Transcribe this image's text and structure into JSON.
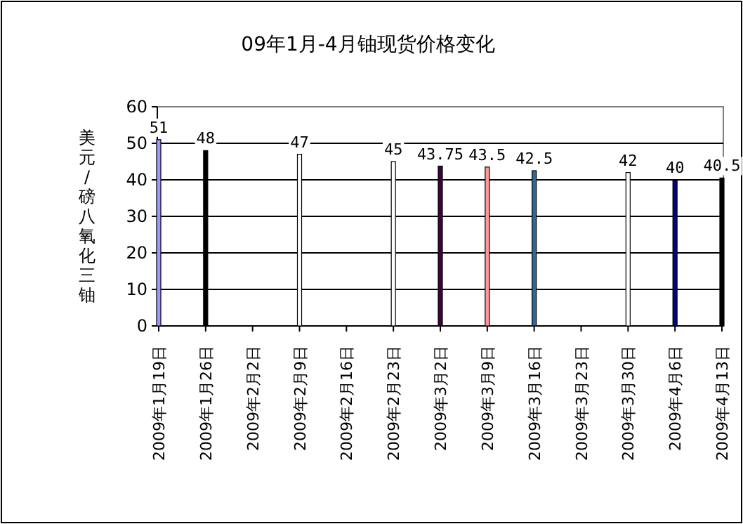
{
  "chart_data": {
    "type": "bar",
    "title": "09年1月-4月铀现货价格变化",
    "ylabel": "美元/磅八氧化三铀",
    "categories": [
      "2009年1月19日",
      "2009年1月26日",
      "2009年2月2日",
      "2009年2月9日",
      "2009年2月16日",
      "2009年2月23日",
      "2009年3月2日",
      "2009年3月9日",
      "2009年3月16日",
      "2009年3月23日",
      "2009年3月30日",
      "2009年4月6日",
      "2009年4月13日"
    ],
    "values": [
      51,
      48,
      null,
      47,
      null,
      45,
      43.75,
      43.5,
      42.5,
      null,
      42,
      40,
      40.5
    ],
    "colors": [
      "#9999ff",
      "#000000",
      null,
      "#ffffff",
      null,
      "#ffffff",
      "#400040",
      "#ff9999",
      "#336699",
      null,
      "#ffffff",
      "#000080",
      "#000000"
    ],
    "ylim": [
      0,
      60
    ],
    "yticks": [
      0,
      10,
      20,
      30,
      40,
      50,
      60
    ],
    "grid": "y",
    "data_labels": true
  }
}
